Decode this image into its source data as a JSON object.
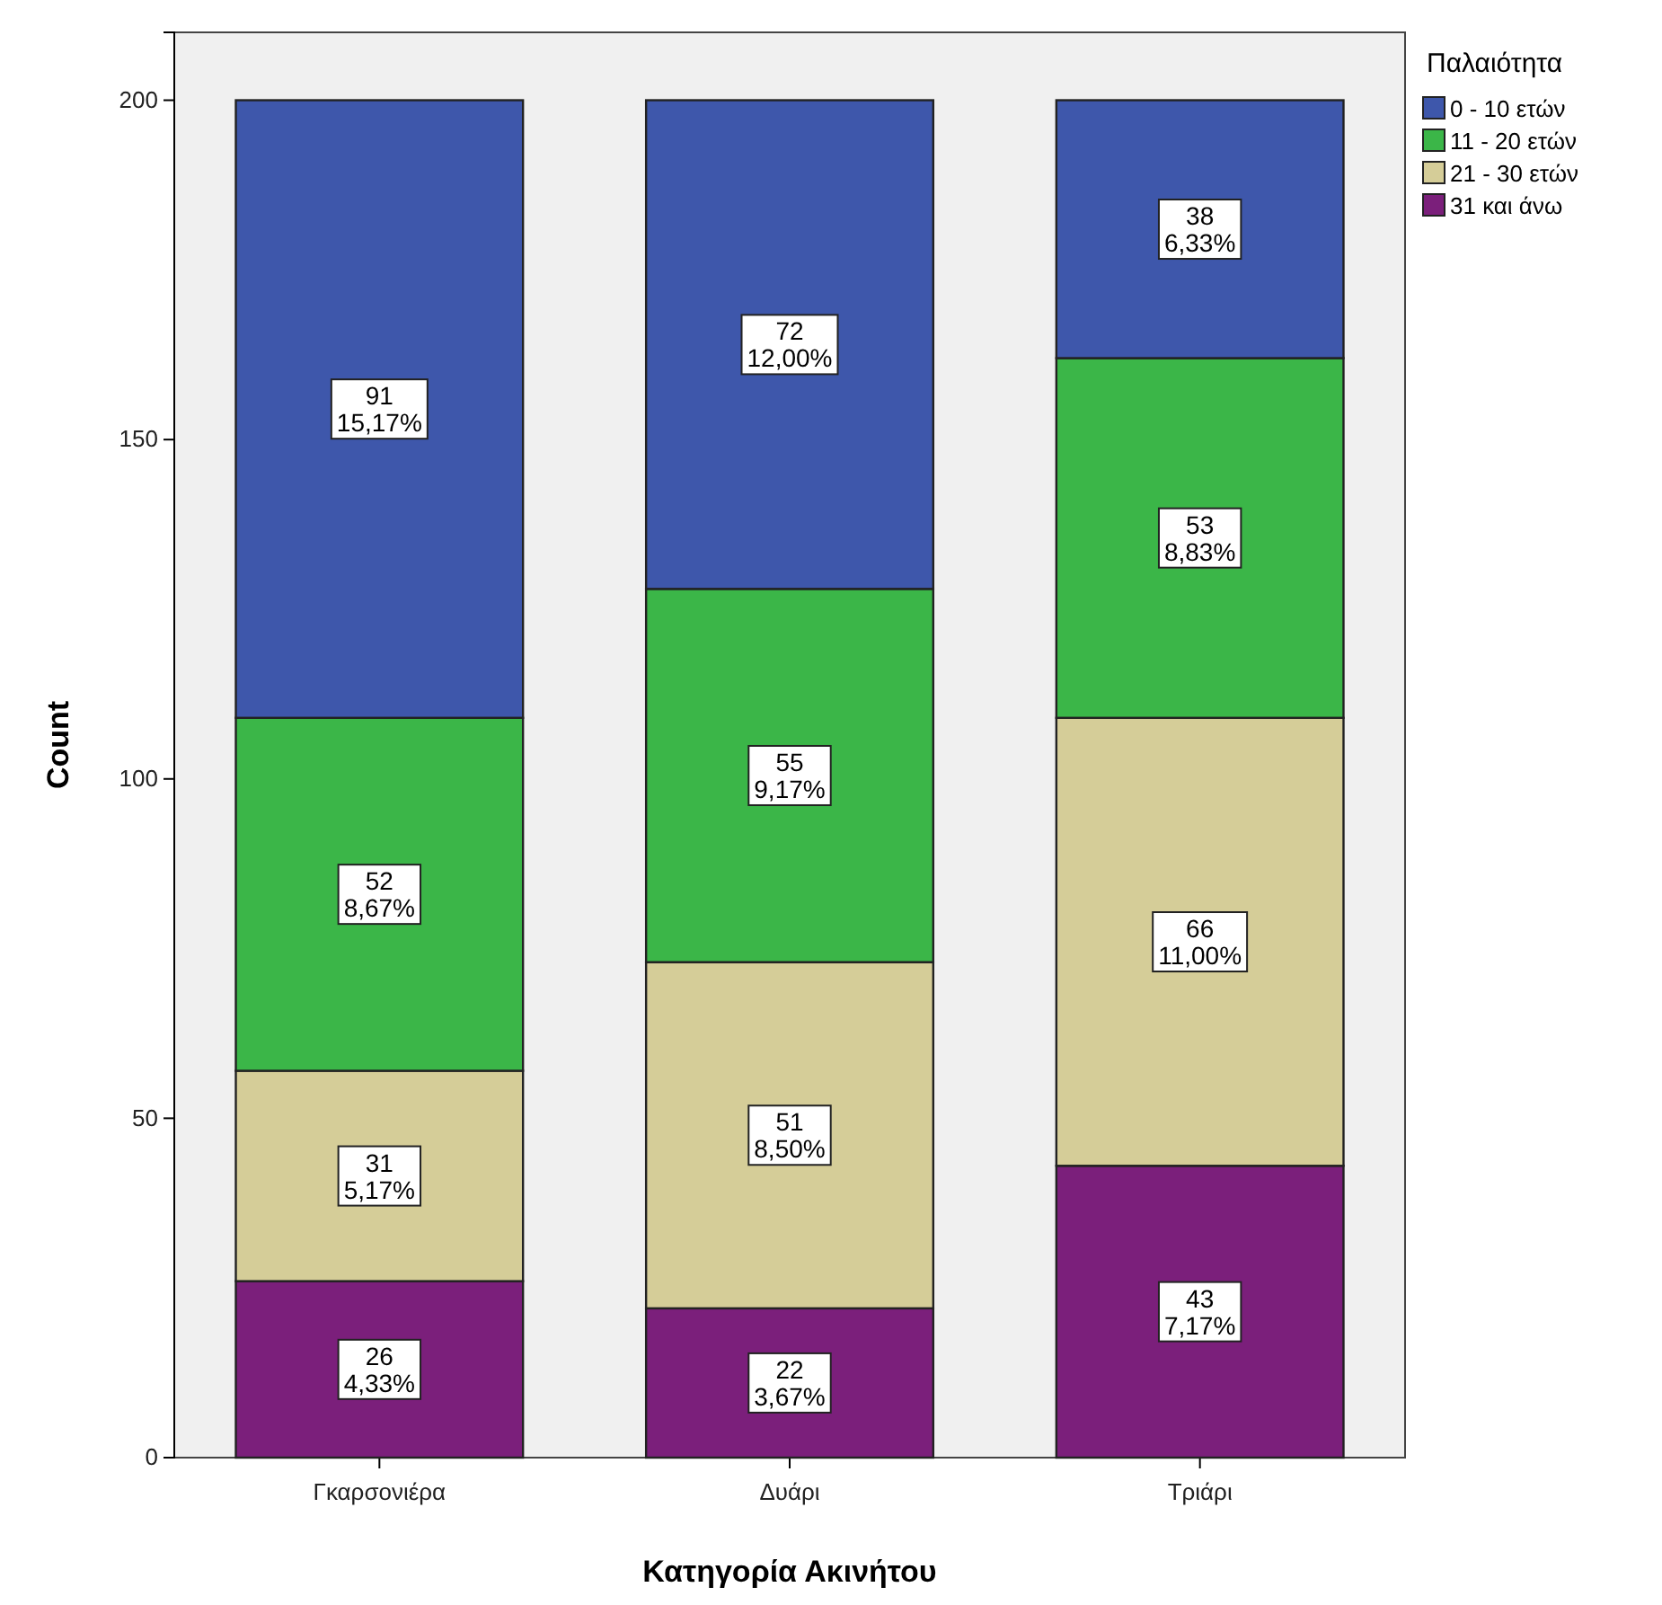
{
  "chart_data": {
    "type": "bar",
    "stacked": true,
    "xlabel": "Κατηγορία Ακινήτου",
    "ylabel": "Count",
    "legend_title": "Παλαιότητα",
    "legend": "top right",
    "grid": false,
    "categories": [
      "Γκαρσονιέρα",
      "Δυάρι",
      "Τριάρι"
    ],
    "ylim": [
      0,
      210
    ],
    "yticks": [
      0,
      50,
      100,
      150,
      200
    ],
    "series": [
      {
        "name": "31 και άνω",
        "color": "#7b1f7b",
        "values": [
          26,
          22,
          43
        ],
        "value_labels": [
          "26\n4,33%",
          "22\n3,67%",
          "43\n7,17%"
        ]
      },
      {
        "name": "21 - 30 ετών",
        "color": "#d5cd98",
        "values": [
          31,
          51,
          66
        ],
        "value_labels": [
          "31\n5,17%",
          "51\n8,50%",
          "66\n11,00%"
        ]
      },
      {
        "name": "11 - 20 ετών",
        "color": "#3bb648",
        "values": [
          52,
          55,
          53
        ],
        "value_labels": [
          "52\n8,67%",
          "55\n9,17%",
          "53\n8,83%"
        ]
      },
      {
        "name": "0 - 10 ετών",
        "color": "#3e57ab",
        "values": [
          91,
          72,
          38
        ],
        "value_labels": [
          "91\n15,17%",
          "72\n12,00%",
          "38\n6,33%"
        ]
      }
    ]
  }
}
